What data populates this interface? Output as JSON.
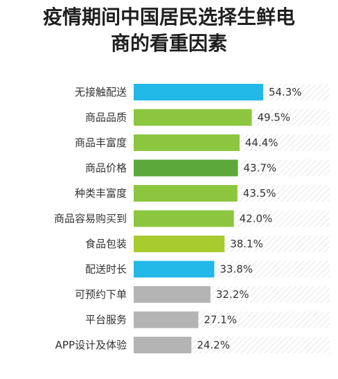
{
  "title_lines": [
    "疫情期间中国居民选择生鲜电",
    "商的看重因素"
  ],
  "colors": {
    "blue": "#22b8e8",
    "green": "#8cc63f",
    "dark_green": "#5da83a",
    "yellow_green": "#a8cc2e",
    "gray": "#b4b4b4",
    "track_hatch": "#e6e6e6"
  },
  "chart_data": {
    "type": "bar",
    "orientation": "horizontal",
    "title": "疫情期间中国居民选择生鲜电商的看重因素",
    "categories": [
      "无接触配送",
      "商品品质",
      "商品丰富度",
      "商品价格",
      "种类丰富度",
      "商品容易购买到",
      "食品包装",
      "配送时长",
      "可预约下单",
      "平台服务",
      "APP设计及体验"
    ],
    "values": [
      54.3,
      49.5,
      44.4,
      43.7,
      43.5,
      42.0,
      38.1,
      33.8,
      32.2,
      27.1,
      24.2
    ],
    "value_labels": [
      "54.3%",
      "49.5%",
      "44.4%",
      "43.7%",
      "43.5%",
      "42.0%",
      "38.1%",
      "33.8%",
      "32.2%",
      "27.1%",
      "24.2%"
    ],
    "bar_colors": [
      "blue",
      "green",
      "green",
      "dark_green",
      "green",
      "green",
      "yellow_green",
      "blue",
      "gray",
      "gray",
      "gray"
    ],
    "xlim": [
      0,
      100
    ],
    "grid": false,
    "legend": "none"
  }
}
